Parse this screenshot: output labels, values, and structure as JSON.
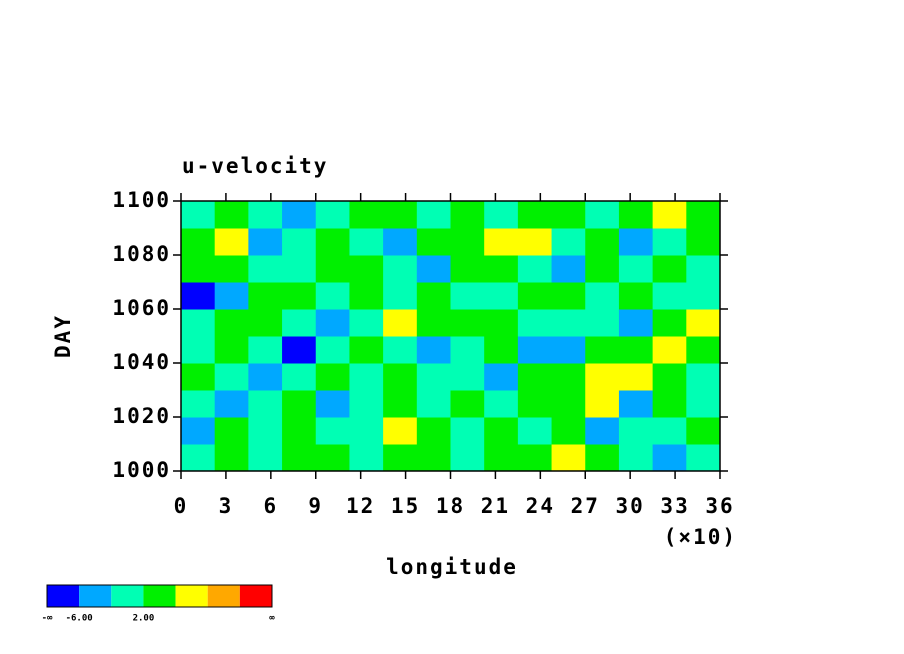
{
  "chart_data": {
    "type": "contour",
    "title": "u-velocity",
    "xlabel": "longitude",
    "xscale_note": "(×10)",
    "ylabel": "DAY",
    "xlim": [
      0,
      36
    ],
    "xticks": [
      0,
      3,
      6,
      9,
      12,
      15,
      18,
      21,
      24,
      27,
      30,
      33,
      36
    ],
    "ylim": [
      1000,
      1100
    ],
    "yticks": [
      1000,
      1020,
      1040,
      1060,
      1080,
      1100
    ],
    "z": [
      [
        1,
        3,
        -1,
        2,
        4,
        0,
        3,
        5,
        1,
        2,
        4,
        7,
        3,
        0,
        -3,
        1
      ],
      [
        -3,
        2,
        0,
        4,
        -2,
        1,
        7,
        2,
        0,
        3,
        1,
        4,
        -4,
        -2,
        0,
        3
      ],
      [
        0,
        -4,
        1,
        3,
        -3,
        0,
        2,
        -1,
        4,
        0,
        2,
        5,
        6,
        -5,
        3,
        -2
      ],
      [
        3,
        0,
        -5,
        1,
        2,
        -2,
        4,
        0,
        1,
        -3,
        5,
        4,
        8,
        7,
        3,
        0
      ],
      [
        1,
        4,
        -2,
        -7,
        0,
        3,
        -1,
        -3,
        0,
        2,
        -4,
        -6,
        3,
        5,
        6,
        4
      ],
      [
        -2,
        5,
        3,
        0,
        -4,
        1,
        6,
        2,
        3,
        4,
        0,
        -2,
        1,
        -3,
        4,
        7
      ],
      [
        -7,
        -3,
        2,
        4,
        -1,
        2,
        0,
        3,
        1,
        -2,
        4,
        3,
        0,
        2,
        -1,
        1
      ],
      [
        2,
        4,
        1,
        -2,
        3,
        5,
        1,
        -4,
        3,
        2,
        0,
        -3,
        2,
        -2,
        4,
        0
      ],
      [
        3,
        7,
        -3,
        -1,
        4,
        0,
        -3,
        2,
        5,
        6,
        8,
        1,
        3,
        -4,
        0,
        2
      ],
      [
        0,
        2,
        -2,
        -6,
        1,
        4,
        5,
        -2,
        3,
        -1,
        2,
        3,
        0,
        4,
        7,
        2
      ]
    ],
    "colors": [
      "#0000ff",
      "#00a8ff",
      "#00ffb4",
      "#00f000",
      "#ffff00",
      "#ffa800",
      "#ff0000"
    ],
    "colorbar_labels": [
      "-∞",
      {
        "value": -6,
        "label": "-6.00"
      },
      {
        "value": 2,
        "label": "2.00"
      },
      "∞"
    ]
  }
}
